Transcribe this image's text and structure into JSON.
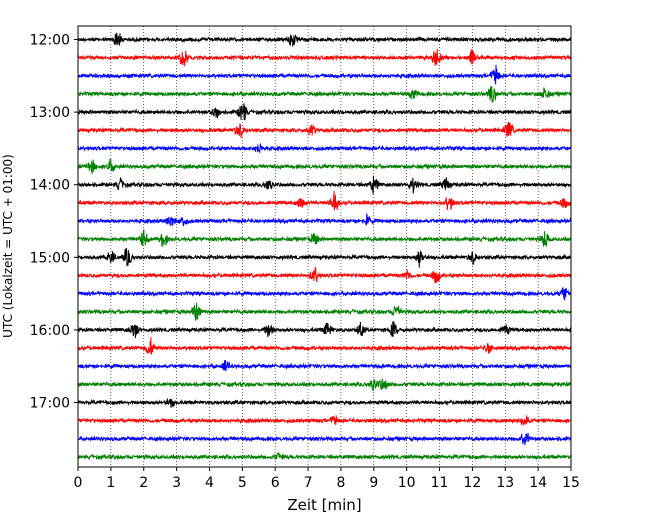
{
  "chart_data": {
    "type": "line",
    "title": "",
    "xlabel": "Zeit  [min]",
    "ylabel": "UTC (Lokalzeit = UTC + 01:00)",
    "xlim": [
      0,
      15
    ],
    "x_ticks": [
      0,
      1,
      2,
      3,
      4,
      5,
      6,
      7,
      8,
      9,
      10,
      11,
      12,
      13,
      14,
      15
    ],
    "grid": "vertical dotted lines at every minute",
    "trace_interval_minutes": 15,
    "trace_colors": [
      "#000000",
      "#ff0000",
      "#0000ff",
      "#008000"
    ],
    "y_tick_labels": [
      "12:00",
      "13:00",
      "14:00",
      "15:00",
      "16:00",
      "17:00"
    ],
    "traces": [
      {
        "start": "12:00",
        "color": "#000000",
        "events": [
          [
            1.2,
            1.6
          ],
          [
            6.5,
            1.6
          ]
        ]
      },
      {
        "start": "12:15",
        "color": "#ff0000",
        "events": [
          [
            3.2,
            2.0
          ],
          [
            10.9,
            2.4
          ],
          [
            12.0,
            1.3
          ]
        ]
      },
      {
        "start": "12:30",
        "color": "#0000ff",
        "events": [
          [
            12.7,
            2.0
          ]
        ]
      },
      {
        "start": "12:45",
        "color": "#008000",
        "events": [
          [
            10.2,
            1.0
          ],
          [
            12.6,
            1.8
          ],
          [
            14.2,
            1.3
          ]
        ]
      },
      {
        "start": "13:00",
        "color": "#000000",
        "events": [
          [
            4.2,
            1.0
          ],
          [
            5.0,
            2.2
          ]
        ]
      },
      {
        "start": "13:15",
        "color": "#ff0000",
        "events": [
          [
            4.9,
            1.6
          ],
          [
            7.1,
            1.2
          ],
          [
            13.1,
            1.8
          ]
        ]
      },
      {
        "start": "13:30",
        "color": "#0000ff",
        "events": [
          [
            5.5,
            0.9
          ]
        ]
      },
      {
        "start": "13:45",
        "color": "#008000",
        "events": [
          [
            0.4,
            1.4
          ],
          [
            1.0,
            1.2
          ]
        ]
      },
      {
        "start": "14:00",
        "color": "#000000",
        "events": [
          [
            1.3,
            1.0
          ],
          [
            5.8,
            1.1
          ],
          [
            9.0,
            1.6
          ],
          [
            10.2,
            1.3
          ],
          [
            11.2,
            1.2
          ]
        ]
      },
      {
        "start": "14:15",
        "color": "#ff0000",
        "events": [
          [
            6.8,
            1.0
          ],
          [
            7.8,
            2.2
          ],
          [
            11.3,
            1.6
          ],
          [
            14.8,
            1.0
          ]
        ]
      },
      {
        "start": "14:30",
        "color": "#0000ff",
        "events": [
          [
            2.8,
            1.2
          ],
          [
            3.2,
            1.0
          ],
          [
            8.8,
            1.0
          ]
        ]
      },
      {
        "start": "14:45",
        "color": "#008000",
        "events": [
          [
            2.0,
            1.6
          ],
          [
            2.6,
            1.4
          ],
          [
            7.2,
            1.0
          ],
          [
            14.2,
            1.6
          ]
        ]
      },
      {
        "start": "15:00",
        "color": "#000000",
        "events": [
          [
            1.0,
            1.2
          ],
          [
            1.5,
            1.8
          ],
          [
            10.4,
            1.8
          ],
          [
            12.0,
            1.2
          ]
        ]
      },
      {
        "start": "15:15",
        "color": "#ff0000",
        "events": [
          [
            7.2,
            1.6
          ],
          [
            10.0,
            1.0
          ],
          [
            10.9,
            1.6
          ]
        ]
      },
      {
        "start": "15:30",
        "color": "#0000ff",
        "events": [
          [
            14.8,
            1.3
          ]
        ]
      },
      {
        "start": "15:45",
        "color": "#008000",
        "events": [
          [
            3.6,
            2.0
          ],
          [
            9.7,
            1.5
          ]
        ]
      },
      {
        "start": "16:00",
        "color": "#000000",
        "events": [
          [
            1.7,
            1.6
          ],
          [
            5.8,
            1.3
          ],
          [
            7.6,
            1.4
          ],
          [
            8.6,
            1.4
          ],
          [
            9.6,
            1.6
          ],
          [
            13.0,
            1.0
          ]
        ]
      },
      {
        "start": "16:15",
        "color": "#ff0000",
        "events": [
          [
            2.2,
            1.8
          ],
          [
            12.5,
            1.0
          ]
        ]
      },
      {
        "start": "16:30",
        "color": "#0000ff",
        "events": [
          [
            4.5,
            0.9
          ]
        ]
      },
      {
        "start": "16:45",
        "color": "#008000",
        "events": [
          [
            9.0,
            1.2
          ],
          [
            9.3,
            1.2
          ]
        ]
      },
      {
        "start": "17:00",
        "color": "#000000",
        "events": [
          [
            2.8,
            1.0
          ]
        ]
      },
      {
        "start": "17:15",
        "color": "#ff0000",
        "events": [
          [
            7.8,
            1.0
          ],
          [
            13.6,
            1.3
          ]
        ]
      },
      {
        "start": "17:30",
        "color": "#0000ff",
        "events": [
          [
            13.6,
            2.0
          ]
        ]
      },
      {
        "start": "17:45",
        "color": "#008000",
        "events": [
          [
            6.1,
            0.8
          ]
        ]
      }
    ]
  }
}
